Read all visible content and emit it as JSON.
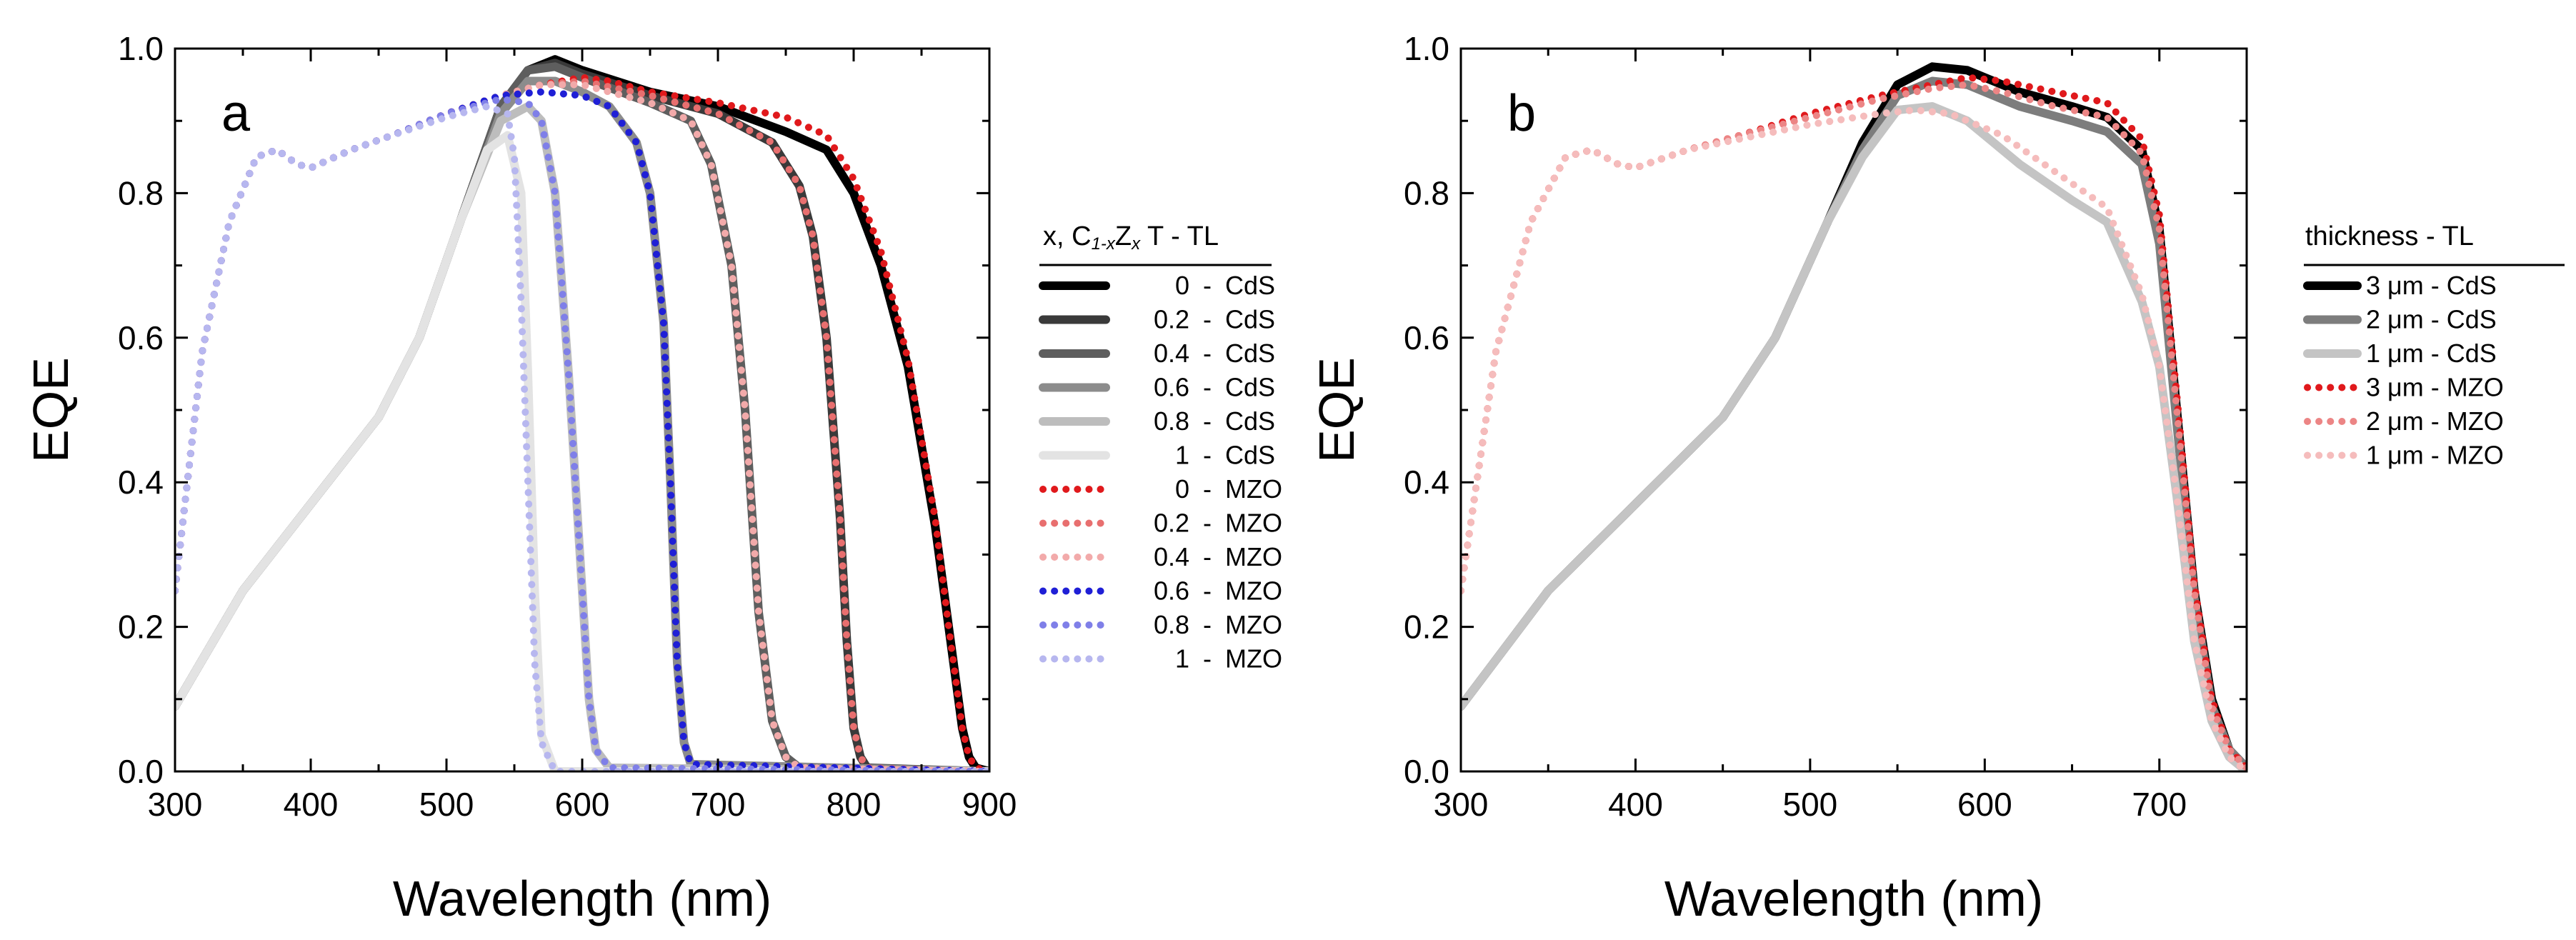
{
  "chart_data": [
    {
      "type": "line",
      "panel_label": "a",
      "xlabel": "Wavelength (nm)",
      "ylabel": "EQE",
      "xlim": [
        300,
        900
      ],
      "ylim": [
        0,
        1.0
      ],
      "xticks": [
        "300",
        "400",
        "500",
        "600",
        "700",
        "800",
        "900"
      ],
      "yticks": [
        "0.0",
        "0.2",
        "0.4",
        "0.6",
        "0.8",
        "1.0"
      ],
      "legend": {
        "title_parts": {
          "x": "x, C",
          "s1": "1-x",
          "z": "Z",
          "s2": "x",
          "rest": "T - TL"
        },
        "entries": [
          {
            "x": "0",
            "tl": "CdS"
          },
          {
            "x": "0.2",
            "tl": "CdS"
          },
          {
            "x": "0.4",
            "tl": "CdS"
          },
          {
            "x": "0.6",
            "tl": "CdS"
          },
          {
            "x": "0.8",
            "tl": "CdS"
          },
          {
            "x": "1",
            "tl": "CdS"
          },
          {
            "x": "0",
            "tl": "MZO"
          },
          {
            "x": "0.2",
            "tl": "MZO"
          },
          {
            "x": "0.4",
            "tl": "MZO"
          },
          {
            "x": "0.6",
            "tl": "MZO"
          },
          {
            "x": "0.8",
            "tl": "MZO"
          },
          {
            "x": "1",
            "tl": "MZO"
          }
        ]
      },
      "series": [
        {
          "name": "0 - CdS",
          "color": "#000000",
          "style": "solid",
          "x": [
            300,
            350,
            400,
            450,
            480,
            510,
            540,
            560,
            580,
            600,
            650,
            700,
            750,
            780,
            800,
            820,
            840,
            860,
            870,
            880,
            885,
            890,
            900
          ],
          "y": [
            0.09,
            0.25,
            0.37,
            0.49,
            0.6,
            0.76,
            0.92,
            0.97,
            0.985,
            0.97,
            0.94,
            0.92,
            0.885,
            0.86,
            0.8,
            0.7,
            0.56,
            0.34,
            0.2,
            0.06,
            0.02,
            0.005,
            0.0
          ]
        },
        {
          "name": "0.2 - CdS",
          "color": "#3a3a3a",
          "style": "solid",
          "x": [
            300,
            350,
            400,
            450,
            480,
            510,
            540,
            560,
            580,
            600,
            650,
            700,
            740,
            760,
            770,
            780,
            790,
            795,
            800,
            805,
            810,
            900
          ],
          "y": [
            0.09,
            0.25,
            0.37,
            0.49,
            0.6,
            0.76,
            0.92,
            0.97,
            0.98,
            0.965,
            0.935,
            0.91,
            0.87,
            0.81,
            0.74,
            0.6,
            0.35,
            0.18,
            0.06,
            0.02,
            0.005,
            0.0
          ]
        },
        {
          "name": "0.4 - CdS",
          "color": "#5e5e5e",
          "style": "solid",
          "x": [
            300,
            350,
            400,
            450,
            480,
            510,
            540,
            560,
            580,
            600,
            650,
            680,
            695,
            710,
            720,
            730,
            740,
            750,
            760,
            900
          ],
          "y": [
            0.09,
            0.25,
            0.37,
            0.49,
            0.6,
            0.76,
            0.92,
            0.97,
            0.975,
            0.96,
            0.925,
            0.9,
            0.84,
            0.7,
            0.5,
            0.22,
            0.07,
            0.02,
            0.005,
            0.0
          ]
        },
        {
          "name": "0.6 - CdS",
          "color": "#8c8c8c",
          "style": "solid",
          "x": [
            300,
            350,
            400,
            450,
            480,
            510,
            540,
            560,
            580,
            600,
            620,
            640,
            650,
            660,
            665,
            670,
            675,
            680,
            900
          ],
          "y": [
            0.09,
            0.25,
            0.37,
            0.49,
            0.6,
            0.76,
            0.91,
            0.955,
            0.955,
            0.94,
            0.92,
            0.87,
            0.8,
            0.62,
            0.4,
            0.15,
            0.04,
            0.01,
            0.0
          ]
        },
        {
          "name": "0.8 - CdS",
          "color": "#bdbdbd",
          "style": "solid",
          "x": [
            300,
            350,
            400,
            450,
            480,
            510,
            540,
            560,
            570,
            580,
            590,
            600,
            605,
            610,
            620,
            900
          ],
          "y": [
            0.09,
            0.25,
            0.37,
            0.49,
            0.6,
            0.76,
            0.9,
            0.92,
            0.9,
            0.8,
            0.55,
            0.25,
            0.1,
            0.03,
            0.005,
            0.0
          ]
        },
        {
          "name": "1 - CdS",
          "color": "#e3e3e3",
          "style": "solid",
          "x": [
            300,
            350,
            400,
            450,
            480,
            510,
            530,
            545,
            555,
            560,
            565,
            570,
            580,
            900
          ],
          "y": [
            0.09,
            0.25,
            0.37,
            0.49,
            0.6,
            0.76,
            0.86,
            0.88,
            0.8,
            0.55,
            0.25,
            0.05,
            0.0,
            0.0
          ]
        },
        {
          "name": "0 - MZO",
          "color": "#e0191c",
          "style": "dotted",
          "x": [
            300,
            320,
            340,
            360,
            375,
            390,
            400,
            430,
            460,
            500,
            540,
            570,
            600,
            620,
            650,
            700,
            750,
            780,
            800,
            820,
            840,
            860,
            870,
            880,
            885,
            890,
            900
          ],
          "y": [
            0.25,
            0.58,
            0.76,
            0.85,
            0.86,
            0.84,
            0.835,
            0.86,
            0.88,
            0.91,
            0.935,
            0.95,
            0.96,
            0.955,
            0.94,
            0.925,
            0.905,
            0.88,
            0.82,
            0.72,
            0.57,
            0.35,
            0.2,
            0.06,
            0.02,
            0.005,
            0.0
          ]
        },
        {
          "name": "0.2 - MZO",
          "color": "#e86f6f",
          "style": "dotted",
          "x": [
            300,
            320,
            340,
            360,
            375,
            390,
            400,
            430,
            460,
            500,
            540,
            570,
            600,
            650,
            700,
            740,
            760,
            770,
            780,
            790,
            795,
            800,
            805,
            810,
            900
          ],
          "y": [
            0.25,
            0.58,
            0.76,
            0.85,
            0.86,
            0.84,
            0.835,
            0.86,
            0.88,
            0.91,
            0.935,
            0.95,
            0.955,
            0.935,
            0.91,
            0.87,
            0.81,
            0.74,
            0.6,
            0.35,
            0.18,
            0.06,
            0.02,
            0.005,
            0.0
          ]
        },
        {
          "name": "0.4 - MZO",
          "color": "#f2aaaa",
          "style": "dotted",
          "x": [
            300,
            320,
            340,
            360,
            375,
            390,
            400,
            430,
            460,
            500,
            540,
            570,
            600,
            650,
            680,
            695,
            710,
            720,
            730,
            740,
            750,
            760,
            900
          ],
          "y": [
            0.25,
            0.58,
            0.76,
            0.85,
            0.86,
            0.84,
            0.835,
            0.86,
            0.88,
            0.91,
            0.935,
            0.95,
            0.95,
            0.925,
            0.9,
            0.84,
            0.7,
            0.5,
            0.22,
            0.07,
            0.02,
            0.005,
            0.0
          ]
        },
        {
          "name": "0.6 - MZO",
          "color": "#1f1fd6",
          "style": "dotted",
          "x": [
            300,
            320,
            340,
            360,
            375,
            390,
            400,
            430,
            460,
            500,
            540,
            570,
            600,
            620,
            640,
            650,
            660,
            665,
            670,
            675,
            680,
            900
          ],
          "y": [
            0.25,
            0.58,
            0.76,
            0.85,
            0.86,
            0.84,
            0.835,
            0.86,
            0.88,
            0.91,
            0.935,
            0.94,
            0.935,
            0.92,
            0.87,
            0.8,
            0.62,
            0.4,
            0.15,
            0.04,
            0.01,
            0.0
          ]
        },
        {
          "name": "0.8 - MZO",
          "color": "#7f7fe8",
          "style": "dotted",
          "x": [
            300,
            320,
            340,
            360,
            375,
            390,
            400,
            430,
            460,
            500,
            540,
            560,
            570,
            580,
            590,
            600,
            605,
            610,
            620,
            900
          ],
          "y": [
            0.25,
            0.58,
            0.76,
            0.85,
            0.86,
            0.84,
            0.835,
            0.86,
            0.88,
            0.91,
            0.93,
            0.925,
            0.9,
            0.8,
            0.55,
            0.25,
            0.1,
            0.03,
            0.005,
            0.0
          ]
        },
        {
          "name": "1 - MZO",
          "color": "#b7b7ef",
          "style": "dotted",
          "x": [
            300,
            320,
            340,
            360,
            375,
            390,
            400,
            430,
            460,
            500,
            530,
            545,
            550,
            555,
            560,
            565,
            570,
            580,
            900
          ],
          "y": [
            0.25,
            0.58,
            0.76,
            0.85,
            0.86,
            0.84,
            0.835,
            0.86,
            0.88,
            0.905,
            0.92,
            0.91,
            0.85,
            0.65,
            0.4,
            0.15,
            0.04,
            0.0,
            0.0
          ]
        }
      ]
    },
    {
      "type": "line",
      "panel_label": "b",
      "xlabel": "Wavelength (nm)",
      "ylabel": "EQE",
      "xlim": [
        300,
        750
      ],
      "ylim": [
        0,
        1.0
      ],
      "xticks": [
        "300",
        "400",
        "500",
        "600",
        "700"
      ],
      "yticks": [
        "0.0",
        "0.2",
        "0.4",
        "0.6",
        "0.8",
        "1.0"
      ],
      "legend": {
        "title": "thickness  -  TL",
        "entries": [
          {
            "label": "3 μm - CdS"
          },
          {
            "label": "2 μm - CdS"
          },
          {
            "label": "1 μm - CdS"
          },
          {
            "label": "3 μm - MZO"
          },
          {
            "label": "2 μm - MZO"
          },
          {
            "label": "1 μm - MZO"
          }
        ]
      },
      "series": [
        {
          "name": "3 μm - CdS",
          "color": "#000000",
          "style": "solid",
          "x": [
            300,
            350,
            400,
            450,
            480,
            510,
            530,
            550,
            570,
            590,
            620,
            650,
            670,
            690,
            700,
            710,
            720,
            730,
            740,
            750
          ],
          "y": [
            0.09,
            0.25,
            0.37,
            0.49,
            0.6,
            0.76,
            0.87,
            0.95,
            0.975,
            0.97,
            0.94,
            0.92,
            0.905,
            0.86,
            0.75,
            0.5,
            0.25,
            0.1,
            0.03,
            0.005
          ]
        },
        {
          "name": "2 μm - CdS",
          "color": "#7d7d7d",
          "style": "solid",
          "x": [
            300,
            350,
            400,
            450,
            480,
            510,
            530,
            550,
            570,
            590,
            620,
            650,
            670,
            690,
            700,
            710,
            720,
            730,
            740,
            750
          ],
          "y": [
            0.09,
            0.25,
            0.37,
            0.49,
            0.6,
            0.76,
            0.86,
            0.935,
            0.955,
            0.95,
            0.92,
            0.9,
            0.885,
            0.84,
            0.73,
            0.48,
            0.24,
            0.09,
            0.03,
            0.005
          ]
        },
        {
          "name": "1 μm - CdS",
          "color": "#c4c4c4",
          "style": "solid",
          "x": [
            300,
            350,
            400,
            450,
            480,
            510,
            530,
            550,
            570,
            590,
            620,
            650,
            670,
            690,
            700,
            710,
            720,
            730,
            740,
            750
          ],
          "y": [
            0.09,
            0.25,
            0.37,
            0.49,
            0.6,
            0.76,
            0.85,
            0.915,
            0.92,
            0.9,
            0.84,
            0.79,
            0.76,
            0.65,
            0.56,
            0.38,
            0.18,
            0.07,
            0.02,
            0.0
          ]
        },
        {
          "name": "3 μm - MZO",
          "color": "#e0191c",
          "style": "dotted",
          "x": [
            300,
            320,
            340,
            360,
            375,
            390,
            400,
            430,
            460,
            500,
            540,
            570,
            590,
            610,
            640,
            670,
            690,
            700,
            710,
            720,
            730,
            740,
            750
          ],
          "y": [
            0.25,
            0.58,
            0.76,
            0.85,
            0.86,
            0.84,
            0.835,
            0.86,
            0.88,
            0.91,
            0.935,
            0.95,
            0.96,
            0.955,
            0.94,
            0.925,
            0.875,
            0.77,
            0.52,
            0.26,
            0.1,
            0.03,
            0.005
          ]
        },
        {
          "name": "2 μm - MZO",
          "color": "#ec8585",
          "style": "dotted",
          "x": [
            300,
            320,
            340,
            360,
            375,
            390,
            400,
            430,
            460,
            500,
            540,
            570,
            590,
            610,
            640,
            670,
            690,
            700,
            710,
            720,
            730,
            740,
            750
          ],
          "y": [
            0.25,
            0.58,
            0.76,
            0.85,
            0.86,
            0.84,
            0.835,
            0.86,
            0.88,
            0.905,
            0.93,
            0.945,
            0.95,
            0.94,
            0.92,
            0.905,
            0.855,
            0.75,
            0.5,
            0.25,
            0.09,
            0.03,
            0.005
          ]
        },
        {
          "name": "1 μm - MZO",
          "color": "#f5bcbc",
          "style": "dotted",
          "x": [
            300,
            320,
            340,
            360,
            375,
            390,
            400,
            430,
            460,
            500,
            540,
            560,
            580,
            610,
            640,
            670,
            690,
            700,
            710,
            720,
            730,
            740,
            750
          ],
          "y": [
            0.25,
            0.58,
            0.76,
            0.85,
            0.86,
            0.84,
            0.835,
            0.86,
            0.875,
            0.895,
            0.91,
            0.915,
            0.91,
            0.88,
            0.83,
            0.78,
            0.66,
            0.56,
            0.38,
            0.18,
            0.07,
            0.02,
            0.0
          ]
        }
      ]
    }
  ]
}
